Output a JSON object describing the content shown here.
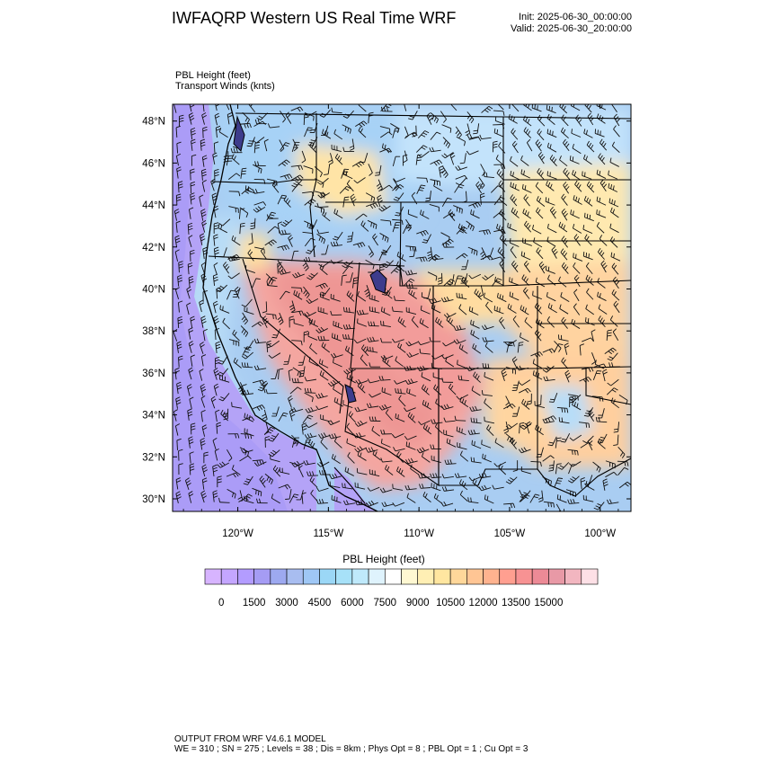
{
  "header": {
    "title": "IWFAQRP Western US Real Time WRF",
    "init": "Init: 2025-06-30_00:00:00",
    "valid": "Valid: 2025-06-30_20:00:00"
  },
  "field_labels": {
    "line1": "PBL Height   (feet)",
    "line2": "Transport Winds   (knts)"
  },
  "map": {
    "lat_ticks": [
      "48°N",
      "46°N",
      "44°N",
      "42°N",
      "40°N",
      "38°N",
      "36°N",
      "34°N",
      "32°N",
      "30°N"
    ],
    "lon_ticks": [
      "120°W",
      "115°W",
      "110°W",
      "105°W",
      "100°W"
    ],
    "extent": {
      "lon_min": -123.6,
      "lon_max": -98.3,
      "lat_min": 29.4,
      "lat_max": 48.8
    }
  },
  "colorbar": {
    "title": "PBL Height  (feet)",
    "labels": [
      "0",
      "1500",
      "3000",
      "4500",
      "6000",
      "7500",
      "9000",
      "10500",
      "12000",
      "13500",
      "15000"
    ],
    "colors": [
      "#d7b4ff",
      "#c4a6ff",
      "#b39cff",
      "#a59cf4",
      "#9da9f0",
      "#a8bdf0",
      "#9fc7f5",
      "#9bd7f6",
      "#a7e1f8",
      "#bfe9fb",
      "#dff3fd",
      "#ffffff",
      "#fff8d2",
      "#ffefb4",
      "#ffe6a0",
      "#ffd79a",
      "#ffc594",
      "#ffb38f",
      "#ff9f90",
      "#f79293",
      "#ec8a96",
      "#e899a6",
      "#f2b6c0",
      "#fde0e6"
    ]
  },
  "footer": {
    "line1": "OUTPUT FROM WRF V4.6.1 MODEL",
    "line2": "WE = 310 ; SN = 275 ; Levels = 38 ; Dis = 8km ; Phys Opt = 8 ; PBL Opt = 1 ; Cu Opt = 3"
  }
}
